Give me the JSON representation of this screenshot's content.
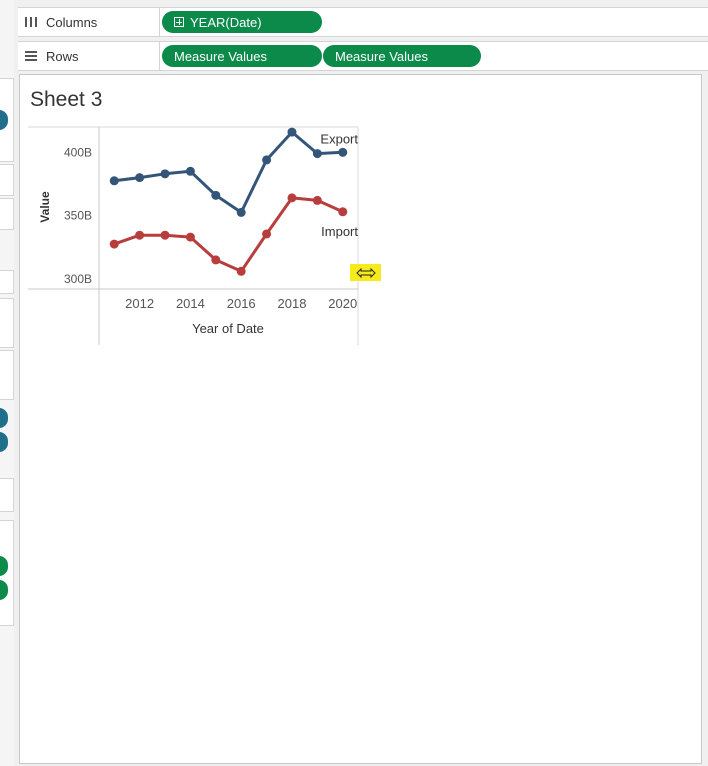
{
  "shelves": {
    "columns": {
      "label": "Columns",
      "pill": "YEAR(Date)"
    },
    "rows": {
      "label": "Rows",
      "pills": [
        "Measure Values",
        "Measure Values"
      ]
    }
  },
  "sheet": {
    "title": "Sheet 3"
  },
  "colors": {
    "pill": "#0b8a4a",
    "export": "#33557a",
    "import": "#b83d3d",
    "resize_highlight": "#f7ea1a"
  },
  "chart_data": {
    "type": "line",
    "xlabel": "Year of Date",
    "ylabel": "Value",
    "x": [
      2011,
      2012,
      2013,
      2014,
      2015,
      2016,
      2017,
      2018,
      2019,
      2020
    ],
    "xticks": [
      2012,
      2014,
      2016,
      2018,
      2020
    ],
    "xtick_labels": [
      "2012",
      "2014",
      "2016",
      "2018",
      "2020"
    ],
    "yticks": [
      300,
      350,
      400
    ],
    "ytick_labels": [
      "300B",
      "350B",
      "400B"
    ],
    "ylim": [
      292,
      420
    ],
    "xlim": [
      2010.4,
      2020.6
    ],
    "grid": false,
    "series": [
      {
        "name": "Export",
        "color": "#33557a",
        "values": [
          377.5,
          380,
          383,
          385,
          366,
          352.5,
          394,
          416,
          399,
          400
        ]
      },
      {
        "name": "Import",
        "color": "#b83d3d",
        "values": [
          327.5,
          334.5,
          334.5,
          333,
          315,
          306,
          335.5,
          364,
          362,
          353
        ]
      }
    ]
  }
}
